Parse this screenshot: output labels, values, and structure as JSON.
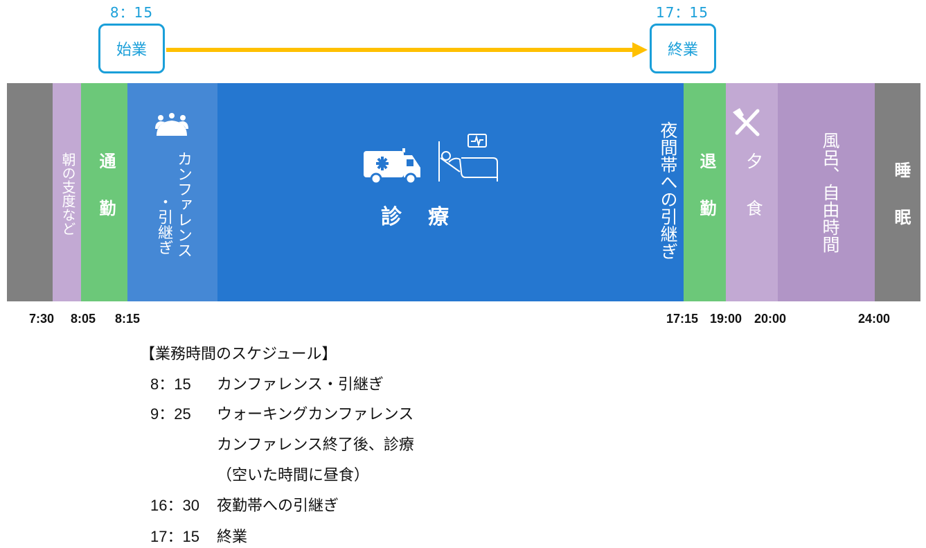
{
  "header": {
    "start": {
      "time": "8：15",
      "label": "始業"
    },
    "end": {
      "time": "17：15",
      "label": "終業"
    }
  },
  "colors": {
    "accent_blue": "#1a9fd9",
    "arrow": "#ffc000",
    "gray": "#808080",
    "lavender": "#c2a9d3",
    "green": "#6cc879",
    "light_blue": "#4588d5",
    "blue": "#2577d0",
    "purple": "#b195c6"
  },
  "segments": {
    "sleep_morning": "",
    "morning_prep": "朝の支度など",
    "commute": "通　勤",
    "conference_1": "カンファレンス",
    "conference_2": "・引継ぎ",
    "medical": "診　療",
    "handover": "夜間帯への引継ぎ",
    "leave": "退　勤",
    "dinner": "夕　食",
    "bath": "風呂、自由時間",
    "sleep": "睡　眠"
  },
  "icons": [
    "people-meeting-icon",
    "ambulance-icon",
    "hospital-bed-icon",
    "fork-knife-icon"
  ],
  "time_labels": [
    "7:30",
    "8:05",
    "8:15",
    "17:15",
    "19:00",
    "20:00",
    "24:00"
  ],
  "schedule": {
    "title": "【業務時間のスケジュール】",
    "rows": [
      {
        "time": "8：15",
        "text": "カンファレンス・引継ぎ"
      },
      {
        "time": "9：25",
        "text": "ウォーキングカンファレンス"
      },
      {
        "time": "",
        "text": "カンファレンス終了後、診療"
      },
      {
        "time": "",
        "text": "（空いた時間に昼食）"
      },
      {
        "time": "16：30",
        "text": "夜勤帯への引継ぎ"
      },
      {
        "time": "17：15",
        "text": " 終業"
      }
    ]
  }
}
